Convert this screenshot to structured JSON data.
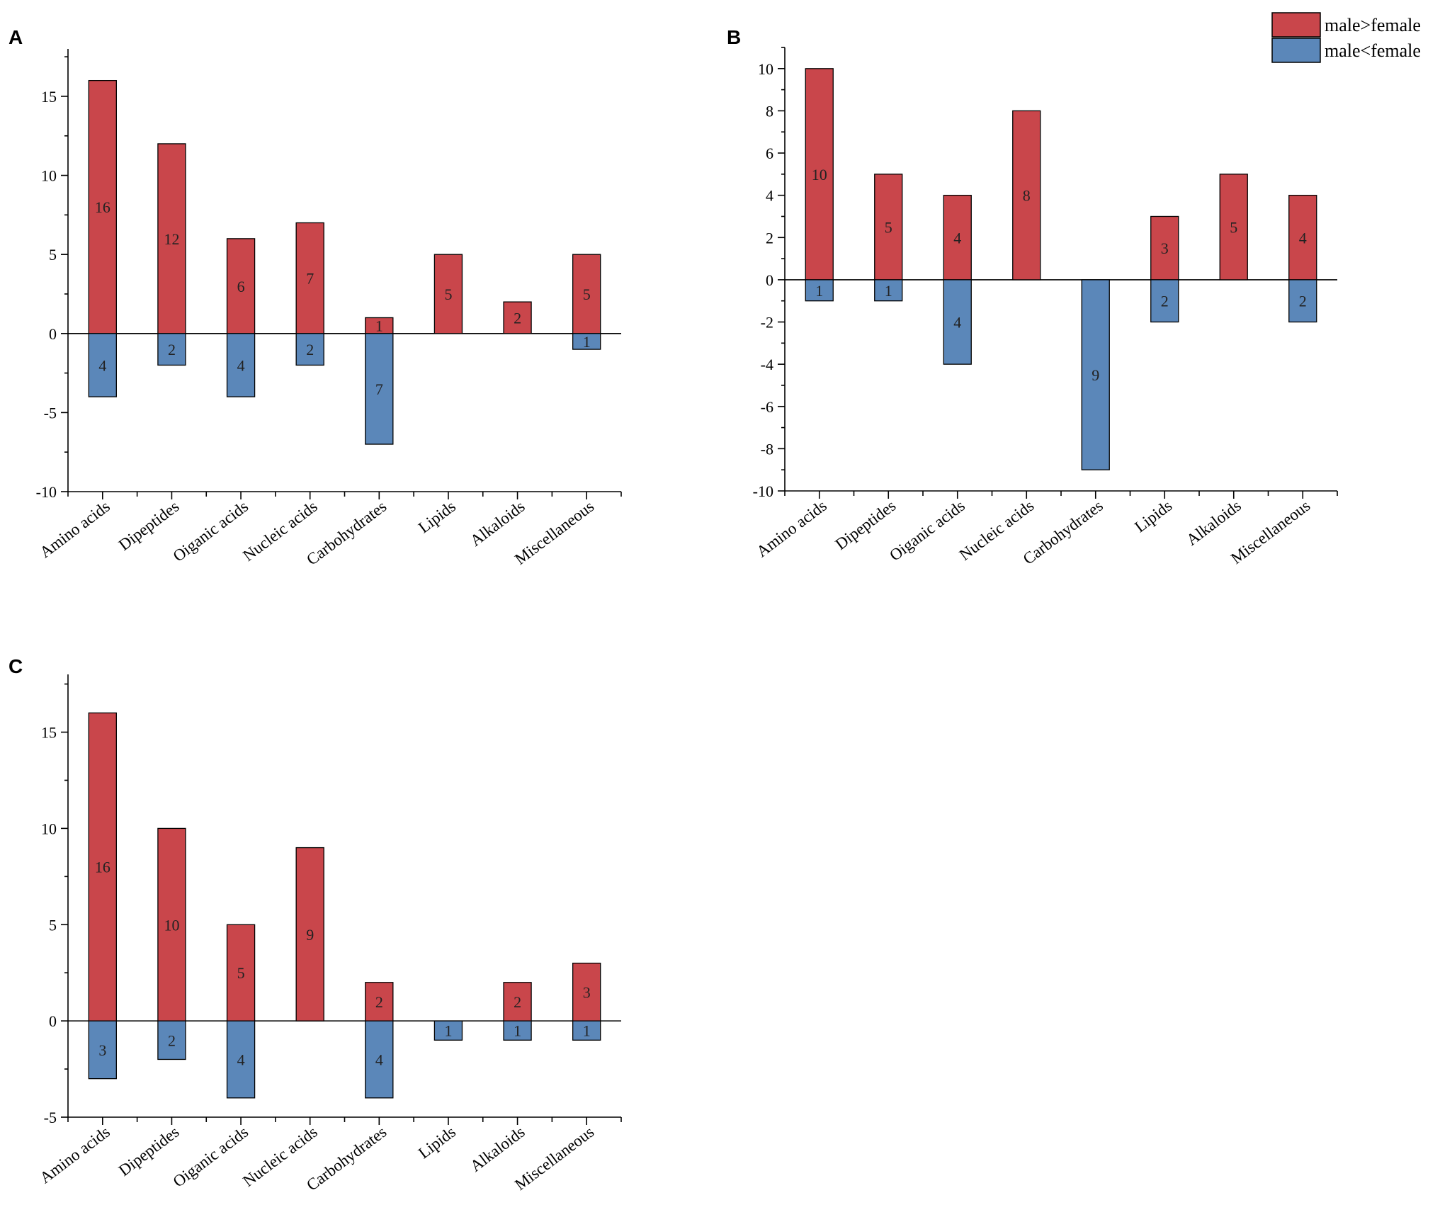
{
  "legend": {
    "entries": [
      {
        "label": "male>female",
        "color": "#c9464b"
      },
      {
        "label": "male<female",
        "color": "#5b87b9"
      }
    ]
  },
  "colors": {
    "positive": "#c9464b",
    "negative": "#5b87b9"
  },
  "chart_data": [
    {
      "panel": "A",
      "type": "bar",
      "categories": [
        "Amino acids",
        "Dipeptides",
        "Oiganic acids",
        "Nucleic acids",
        "Carbohydrates",
        "Lipids",
        "Alkaloids",
        "Miscellaneous"
      ],
      "series": [
        {
          "name": "male>female",
          "values": [
            16,
            12,
            6,
            7,
            1,
            5,
            2,
            5
          ],
          "labels": [
            "16",
            "12",
            "6",
            "7",
            "1",
            "5",
            "2",
            "5"
          ]
        },
        {
          "name": "male<female",
          "values": [
            -4,
            -2,
            -4,
            -2,
            -7,
            0,
            0,
            -1
          ],
          "labels": [
            "4",
            "2",
            "4",
            "2",
            "7",
            "",
            "",
            "1"
          ]
        }
      ],
      "ylim": [
        -10,
        18
      ],
      "yticks": [
        -10,
        -5,
        0,
        5,
        10,
        15
      ],
      "ytick_labels": [
        "-10",
        "-5",
        "0",
        "5",
        "10",
        "15"
      ],
      "xlabel": "",
      "ylabel": ""
    },
    {
      "panel": "B",
      "type": "bar",
      "categories": [
        "Amino acids",
        "Dipeptides",
        "Oiganic acids",
        "Nucleic acids",
        "Carbohydrates",
        "Lipids",
        "Alkaloids",
        "Miscellaneous"
      ],
      "series": [
        {
          "name": "male>female",
          "values": [
            10,
            5,
            4,
            8,
            0,
            3,
            5,
            4
          ],
          "labels": [
            "10",
            "5",
            "4",
            "8",
            "",
            "3",
            "5",
            "4"
          ]
        },
        {
          "name": "male<female",
          "values": [
            -1,
            -1,
            -4,
            0,
            -9,
            -2,
            0,
            -2
          ],
          "labels": [
            "1",
            "1",
            "4",
            "",
            "9",
            "2",
            "",
            "2"
          ]
        }
      ],
      "ylim": [
        -10,
        11
      ],
      "yticks": [
        -10,
        -8,
        -6,
        -4,
        -2,
        0,
        2,
        4,
        6,
        8,
        10
      ],
      "ytick_labels": [
        "-10",
        "-8",
        "-6",
        "-4",
        "-2",
        "0",
        "2",
        "4",
        "6",
        "8",
        "10"
      ],
      "xlabel": "",
      "ylabel": ""
    },
    {
      "panel": "C",
      "type": "bar",
      "categories": [
        "Amino acids",
        "Dipeptides",
        "Oiganic acids",
        "Nucleic acids",
        "Carbohydrates",
        "Lipids",
        "Alkaloids",
        "Miscellaneous"
      ],
      "series": [
        {
          "name": "male>female",
          "values": [
            16,
            10,
            5,
            9,
            2,
            0,
            2,
            3
          ],
          "labels": [
            "16",
            "10",
            "5",
            "9",
            "2",
            "",
            "2",
            "3"
          ]
        },
        {
          "name": "male<female",
          "values": [
            -3,
            -2,
            -4,
            0,
            -4,
            -1,
            -1,
            -1
          ],
          "labels": [
            "3",
            "2",
            "4",
            "",
            "4",
            "1",
            "1",
            "1"
          ]
        }
      ],
      "ylim": [
        -5,
        18
      ],
      "yticks": [
        -5,
        0,
        5,
        10,
        15
      ],
      "ytick_labels": [
        "-5",
        "0",
        "5",
        "10",
        "15"
      ],
      "xlabel": "",
      "ylabel": ""
    }
  ]
}
